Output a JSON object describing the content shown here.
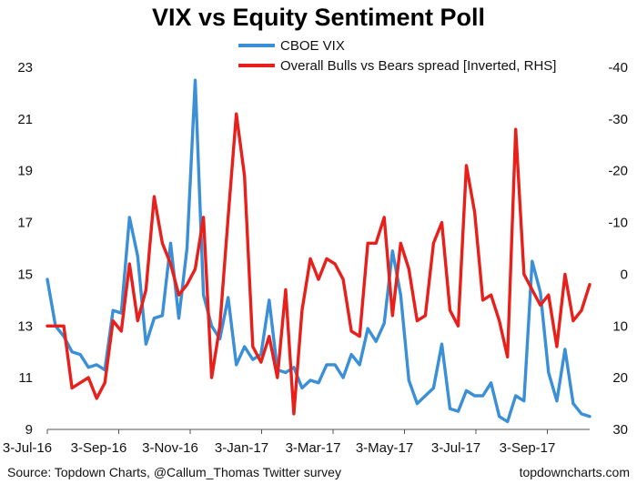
{
  "chart_data": {
    "type": "line",
    "title": "VIX vs Equity Sentiment Poll",
    "x_tick_labels": [
      "3-Jul-16",
      "3-Sep-16",
      "3-Nov-16",
      "3-Jan-17",
      "3-Mar-17",
      "3-May-17",
      "3-Jul-17",
      "3-Sep-17"
    ],
    "y_left": {
      "ticks": [
        "9",
        "11",
        "13",
        "15",
        "17",
        "19",
        "21",
        "23"
      ],
      "ylim": [
        9,
        23
      ]
    },
    "y_right": {
      "ticks": [
        "30",
        "20",
        "10",
        "0",
        "-10",
        "-20",
        "-30",
        "-40"
      ],
      "ylim": [
        30,
        -40
      ],
      "inverted": true
    },
    "series": [
      {
        "name": "CBOE VIX",
        "axis": "left",
        "color": "#3a8fd6",
        "values": [
          14.8,
          13.0,
          12.6,
          12.0,
          11.9,
          11.4,
          11.5,
          11.3,
          13.6,
          13.5,
          17.2,
          15.7,
          12.3,
          13.3,
          13.4,
          16.2,
          13.3,
          16.0,
          22.5,
          14.2,
          13.0,
          12.5,
          14.1,
          11.5,
          12.2,
          11.7,
          11.9,
          14.0,
          11.3,
          11.2,
          11.4,
          10.6,
          10.9,
          10.8,
          11.5,
          11.5,
          11.0,
          11.9,
          11.5,
          12.9,
          12.4,
          13.1,
          15.9,
          14.2,
          10.9,
          10.0,
          10.3,
          10.6,
          12.3,
          9.8,
          9.7,
          10.5,
          10.3,
          10.3,
          10.8,
          9.5,
          9.3,
          10.3,
          10.1,
          15.5,
          14.3,
          11.2,
          10.1,
          12.1,
          10.0,
          9.6,
          9.5
        ]
      },
      {
        "name": "Overall Bulls vs Bears spread [Inverted, RHS]",
        "axis": "right",
        "color": "#e8201c",
        "values": [
          10,
          10,
          10,
          22,
          21,
          20,
          24,
          21,
          9,
          11,
          -2,
          9,
          3,
          -15,
          -6,
          -2,
          4,
          2,
          -1,
          -11,
          20,
          10,
          -11,
          -31,
          -19,
          14,
          17,
          12,
          20,
          3,
          27,
          7,
          -3,
          1,
          -3,
          -2,
          1,
          11,
          12,
          -6,
          -6,
          -11,
          8,
          -6,
          -1,
          9,
          8,
          -6,
          -10,
          7,
          10,
          -21,
          -12,
          5,
          4,
          9,
          16,
          -28,
          0,
          3,
          6,
          4,
          14,
          0,
          9,
          7,
          2
        ]
      }
    ],
    "legend_position": "top-center",
    "grid": false
  },
  "footer": {
    "source": "Source: Topdown Charts, @Callum_Thomas Twitter survey",
    "site": "topdowncharts.com"
  }
}
